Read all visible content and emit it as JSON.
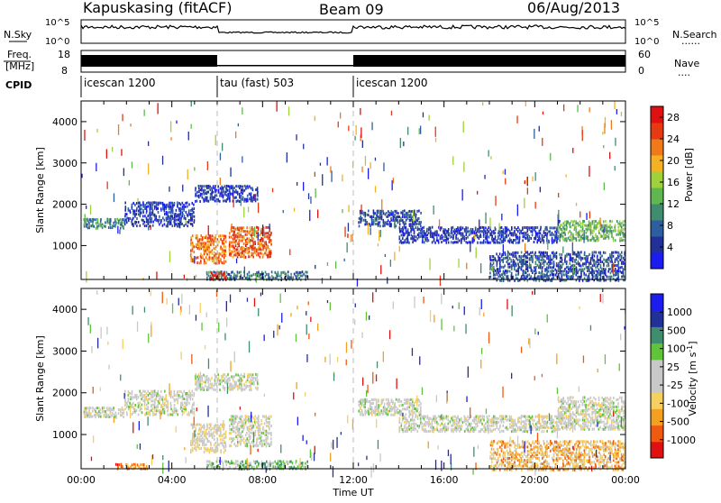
{
  "header": {
    "station": "Kapuskasing (fitACF)",
    "beam": "Beam 09",
    "date": "06/Aug/2013"
  },
  "top_panels": {
    "nsky_label": "N.Sky",
    "nsearch_label": "N.Search",
    "nsearch_dots": "......",
    "freq_label": "Freq.",
    "freq_unit": "[MHz]",
    "freq_ticks": [
      "18",
      "8"
    ],
    "nave_ticks": [
      "60",
      "0"
    ],
    "nave_label": "Nave",
    "nave_dots": "....",
    "nsky_ticks": [
      "10^5",
      "10^0"
    ],
    "nsearch_ticks": [
      "10^5",
      "10^0"
    ],
    "cpid_label": "CPID",
    "cpid_segments": [
      {
        "label": "icescan 1200",
        "start_h": 0,
        "end_h": 6
      },
      {
        "label": "tau (fast) 503",
        "start_h": 6,
        "end_h": 12
      },
      {
        "label": "icescan 1200",
        "start_h": 12,
        "end_h": 24
      }
    ]
  },
  "colors": {
    "power_scale": [
      "#1c1cf0",
      "#22309a",
      "#2d5fa0",
      "#3f8d6e",
      "#5fb84f",
      "#9fd23a",
      "#f3b123",
      "#f07a1a",
      "#e63a12",
      "#e01010"
    ],
    "velocity_scale": [
      "#e01010",
      "#f05a10",
      "#f3a020",
      "#f5cf60",
      "#c8c8c8",
      "#c8c8c8",
      "#5fc43a",
      "#3f8d6e",
      "#22309a",
      "#1c1cf0"
    ]
  },
  "chart_data": [
    {
      "type": "heatmap",
      "name": "power_panel",
      "xlabel": "",
      "ylabel": "Slant Range [km]",
      "ylim": [
        180,
        4500
      ],
      "xlim_hours": [
        0,
        24
      ],
      "yticks": [
        1000,
        2000,
        3000,
        4000
      ],
      "colorbar": {
        "label": "Power [dB]",
        "ticks": [
          "4",
          "8",
          "12",
          "16",
          "20",
          "24",
          "28"
        ],
        "range": [
          0,
          30
        ]
      },
      "echo_regions": [
        {
          "t0": 0.1,
          "t1": 1.9,
          "r0": 1450,
          "r1": 1700,
          "level": 0.35
        },
        {
          "t0": 1.9,
          "t1": 5.0,
          "r0": 1500,
          "r1": 2100,
          "level": 0.15
        },
        {
          "t0": 5.0,
          "t1": 7.8,
          "r0": 2100,
          "r1": 2500,
          "level": 0.15
        },
        {
          "t0": 4.8,
          "t1": 6.4,
          "r0": 600,
          "r1": 1300,
          "level": 0.75
        },
        {
          "t0": 6.5,
          "t1": 8.4,
          "r0": 750,
          "r1": 1500,
          "level": 0.8
        },
        {
          "t0": 5.5,
          "t1": 10.0,
          "r0": 200,
          "r1": 420,
          "level": 0.3
        },
        {
          "t0": 5.7,
          "t1": 6.4,
          "r0": 200,
          "r1": 400,
          "level": 0.95
        },
        {
          "t0": 12.2,
          "t1": 15.0,
          "r0": 1500,
          "r1": 1900,
          "level": 0.2
        },
        {
          "t0": 14.0,
          "t1": 21.0,
          "r0": 1100,
          "r1": 1500,
          "level": 0.15
        },
        {
          "t0": 21.0,
          "t1": 24.0,
          "r0": 1150,
          "r1": 1650,
          "level": 0.45
        },
        {
          "t0": 18.0,
          "t1": 24.0,
          "r0": 180,
          "r1": 900,
          "level": 0.2
        }
      ]
    },
    {
      "type": "heatmap",
      "name": "velocity_panel",
      "xlabel": "Time UT",
      "ylabel": "Slant Range [km]",
      "ylim": [
        180,
        4500
      ],
      "xlim_hours": [
        0,
        24
      ],
      "yticks": [
        1000,
        2000,
        3000,
        4000
      ],
      "xticks": [
        "00:00",
        "04:00",
        "08:00",
        "12:00",
        "16:00",
        "20:00",
        "00:00"
      ],
      "colorbar": {
        "label": "Velocity [m s",
        "label_sup": "-1",
        "label_end": "]",
        "ticks": [
          "1000",
          "500",
          "100",
          "25",
          "-25",
          "-100",
          "-500",
          "-1000"
        ]
      },
      "echo_regions": [
        {
          "t0": 0.1,
          "t1": 1.9,
          "r0": 1450,
          "r1": 1700,
          "level": 0.5
        },
        {
          "t0": 1.9,
          "t1": 5.0,
          "r0": 1500,
          "r1": 2100,
          "level": 0.5
        },
        {
          "t0": 5.0,
          "t1": 7.8,
          "r0": 2100,
          "r1": 2500,
          "level": 0.5
        },
        {
          "t0": 4.8,
          "t1": 6.4,
          "r0": 600,
          "r1": 1300,
          "level": 0.45
        },
        {
          "t0": 6.5,
          "t1": 8.4,
          "r0": 750,
          "r1": 1500,
          "level": 0.5
        },
        {
          "t0": 5.5,
          "t1": 10.0,
          "r0": 200,
          "r1": 420,
          "level": 0.65
        },
        {
          "t0": 1.5,
          "t1": 3.0,
          "r0": 200,
          "r1": 350,
          "level": 0.2
        },
        {
          "t0": 12.2,
          "t1": 15.0,
          "r0": 1500,
          "r1": 1900,
          "level": 0.5
        },
        {
          "t0": 14.0,
          "t1": 21.0,
          "r0": 1100,
          "r1": 1500,
          "level": 0.5
        },
        {
          "t0": 21.0,
          "t1": 24.0,
          "r0": 1150,
          "r1": 1950,
          "level": 0.5
        },
        {
          "t0": 18.0,
          "t1": 24.0,
          "r0": 180,
          "r1": 900,
          "level": 0.3
        }
      ]
    }
  ]
}
